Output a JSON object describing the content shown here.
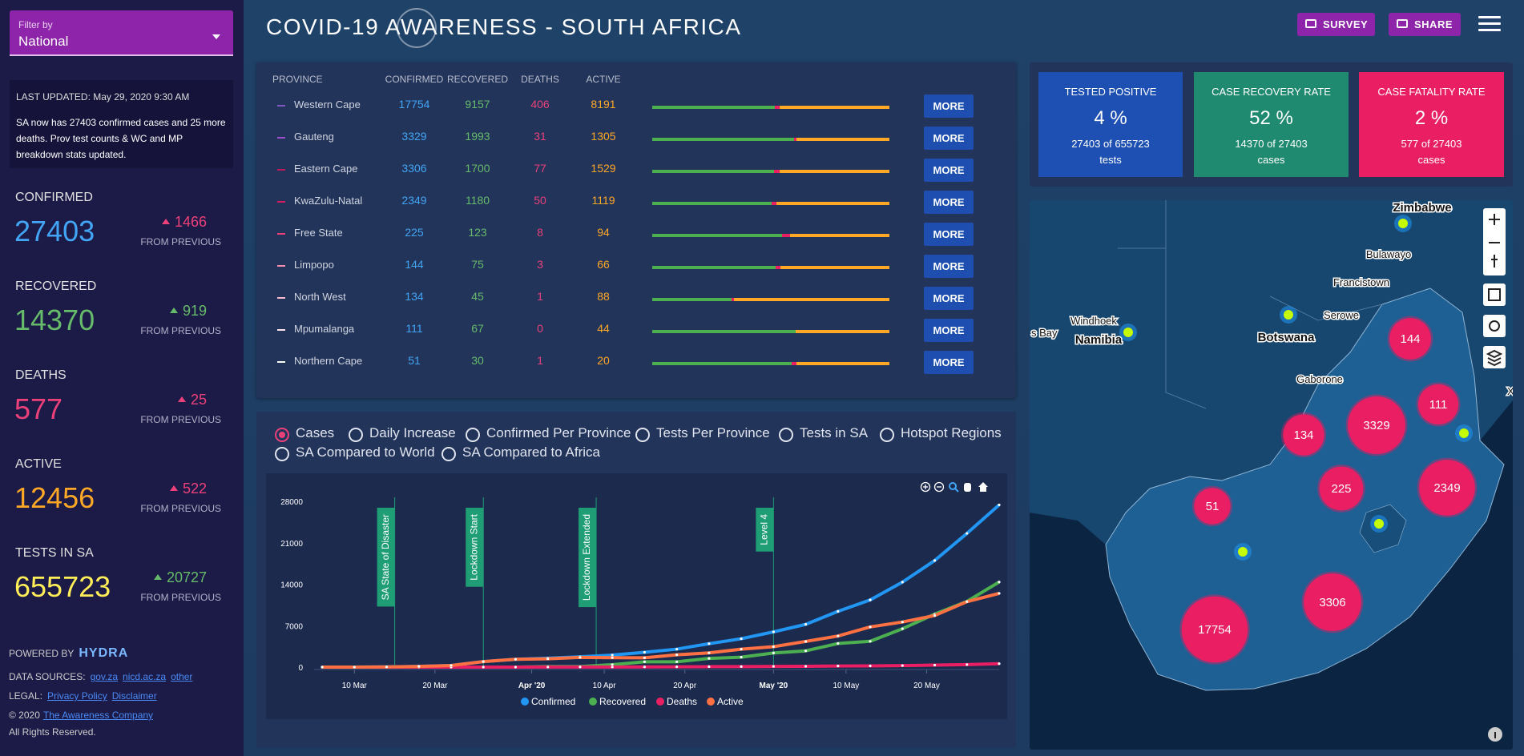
{
  "sidebar": {
    "filter_label": "Filter by",
    "filter_value": "National",
    "last_updated": "LAST UPDATED: May 29, 2020 9:30 AM",
    "note": "SA now has 27403 confirmed cases and 25 more deaths. Prov test counts & WC and MP breakdown stats updated.",
    "stats": [
      {
        "label": "CONFIRMED",
        "value": 27403,
        "change": 1466
      },
      {
        "label": "RECOVERED",
        "value": 14370,
        "change": 919
      },
      {
        "label": "DEATHS",
        "value": 577,
        "change": 25
      },
      {
        "label": "ACTIVE",
        "value": 12456,
        "change": 522
      },
      {
        "label": "TESTS IN SA",
        "value": 655723,
        "change": 20727
      }
    ],
    "change_label": "FROM PREVIOUS",
    "powered_by": "POWERED BY",
    "brand": "HYDRA",
    "data_sources_label": "DATA SOURCES:",
    "sources": [
      "gov.za",
      "nicd.ac.za",
      "other"
    ],
    "legal_label": "LEGAL:",
    "legal_links": [
      "Privacy Policy",
      "Disclaimer"
    ],
    "copyright": "© 2020",
    "company": "The Awareness Company",
    "rights": "All Rights Reserved."
  },
  "header": {
    "title": "COVID-19 AWARENESS - SOUTH AFRICA",
    "buttons": [
      "SURVEY",
      "SHARE"
    ]
  },
  "table": {
    "columns": [
      "PROVINCE",
      "CONFIRMED",
      "RECOVERED",
      "DEATHS",
      "ACTIVE"
    ],
    "rows": [
      [
        "Western Cape",
        17754,
        9157,
        406,
        8191
      ],
      [
        "Gauteng",
        3329,
        1993,
        31,
        1305
      ],
      [
        "Eastern Cape",
        3306,
        1700,
        77,
        1529
      ],
      [
        "KwaZulu-Natal",
        2349,
        1180,
        50,
        1119
      ],
      [
        "Free State",
        225,
        123,
        8,
        94
      ],
      [
        "Limpopo",
        144,
        75,
        3,
        66
      ],
      [
        "North West",
        134,
        45,
        1,
        88
      ],
      [
        "Mpumalanga",
        111,
        67,
        0,
        44
      ],
      [
        "Northern Cape",
        51,
        30,
        1,
        20
      ]
    ],
    "more_label": "MORE"
  },
  "kpis": [
    {
      "title": "TESTED POSITIVE",
      "value": "4 %",
      "detail": "27403 of 655723",
      "unit": "tests"
    },
    {
      "title": "CASE RECOVERY RATE",
      "value": "52 %",
      "detail": "14370 of 27403",
      "unit": "cases"
    },
    {
      "title": "CASE FATALITY RATE",
      "value": "2 %",
      "detail": "577 of 27403",
      "unit": "cases"
    }
  ],
  "tabs": [
    "Cases",
    "Daily Increase",
    "Confirmed Per Province",
    "Tests Per Province",
    "Tests in SA",
    "Hotspot Regions",
    "SA Compared to World",
    "SA Compared to Africa"
  ],
  "chart_data": {
    "type": "line",
    "x": [
      "2020-03-06",
      "2020-03-10",
      "2020-03-14",
      "2020-03-18",
      "2020-03-22",
      "2020-03-26",
      "2020-03-30",
      "2020-04-03",
      "2020-04-07",
      "2020-04-11",
      "2020-04-15",
      "2020-04-19",
      "2020-04-23",
      "2020-04-27",
      "2020-05-01",
      "2020-05-05",
      "2020-05-09",
      "2020-05-13",
      "2020-05-17",
      "2020-05-21",
      "2020-05-25",
      "2020-05-29"
    ],
    "series": [
      {
        "name": "Confirmed",
        "color": "#2196f3",
        "values": [
          1,
          7,
          38,
          116,
          274,
          927,
          1326,
          1505,
          1749,
          2028,
          2506,
          3034,
          3953,
          4793,
          5951,
          7220,
          9420,
          11350,
          14355,
          18003,
          22583,
          27403
        ]
      },
      {
        "name": "Recovered",
        "color": "#4caf50",
        "values": [
          0,
          0,
          0,
          0,
          0,
          0,
          0,
          95,
          95,
          410,
          903,
          903,
          1473,
          1670,
          2382,
          2746,
          3983,
          4357,
          6478,
          8950,
          11100,
          14370
        ]
      },
      {
        "name": "Deaths",
        "color": "#e91e63",
        "values": [
          0,
          0,
          0,
          0,
          0,
          0,
          3,
          9,
          13,
          25,
          34,
          52,
          75,
          90,
          116,
          138,
          186,
          206,
          261,
          339,
          429,
          577
        ]
      },
      {
        "name": "Active",
        "color": "#ff7043",
        "values": [
          1,
          7,
          38,
          116,
          274,
          927,
          1323,
          1401,
          1641,
          1593,
          1569,
          2079,
          2405,
          3033,
          3453,
          4336,
          5251,
          6787,
          7616,
          8714,
          11054,
          12456
        ]
      }
    ],
    "xlim": [
      "2020-03-05",
      "2020-05-29"
    ],
    "xticks": [
      {
        "value": "2020-03-10",
        "label": "10 Mar"
      },
      {
        "value": "2020-03-20",
        "label": "20 Mar"
      },
      {
        "value": "2020-04-01",
        "label": "Apr '20"
      },
      {
        "value": "2020-04-10",
        "label": "10 Apr"
      },
      {
        "value": "2020-04-20",
        "label": "20 Apr"
      },
      {
        "value": "2020-05-01",
        "label": "May '20"
      },
      {
        "value": "2020-05-10",
        "label": "10 May"
      },
      {
        "value": "2020-05-20",
        "label": "20 May"
      }
    ],
    "ylim": [
      0,
      28000
    ],
    "yticks": [
      0,
      7000,
      14000,
      21000,
      28000
    ],
    "annotations": [
      {
        "x": "2020-03-15",
        "text": "SA State of Disaster"
      },
      {
        "x": "2020-03-26",
        "text": "Lockdown Start"
      },
      {
        "x": "2020-04-09",
        "text": "Lockdown Extended"
      },
      {
        "x": "2020-05-01",
        "text": "Level 4"
      }
    ]
  },
  "map": {
    "labels": [
      "Zimbabwe",
      "Bulawayo",
      "Francistown",
      "Windhoek",
      "Namibia",
      "Serowe",
      "Botswana",
      "Gaborone",
      "s Bay",
      "Xa"
    ]
  }
}
